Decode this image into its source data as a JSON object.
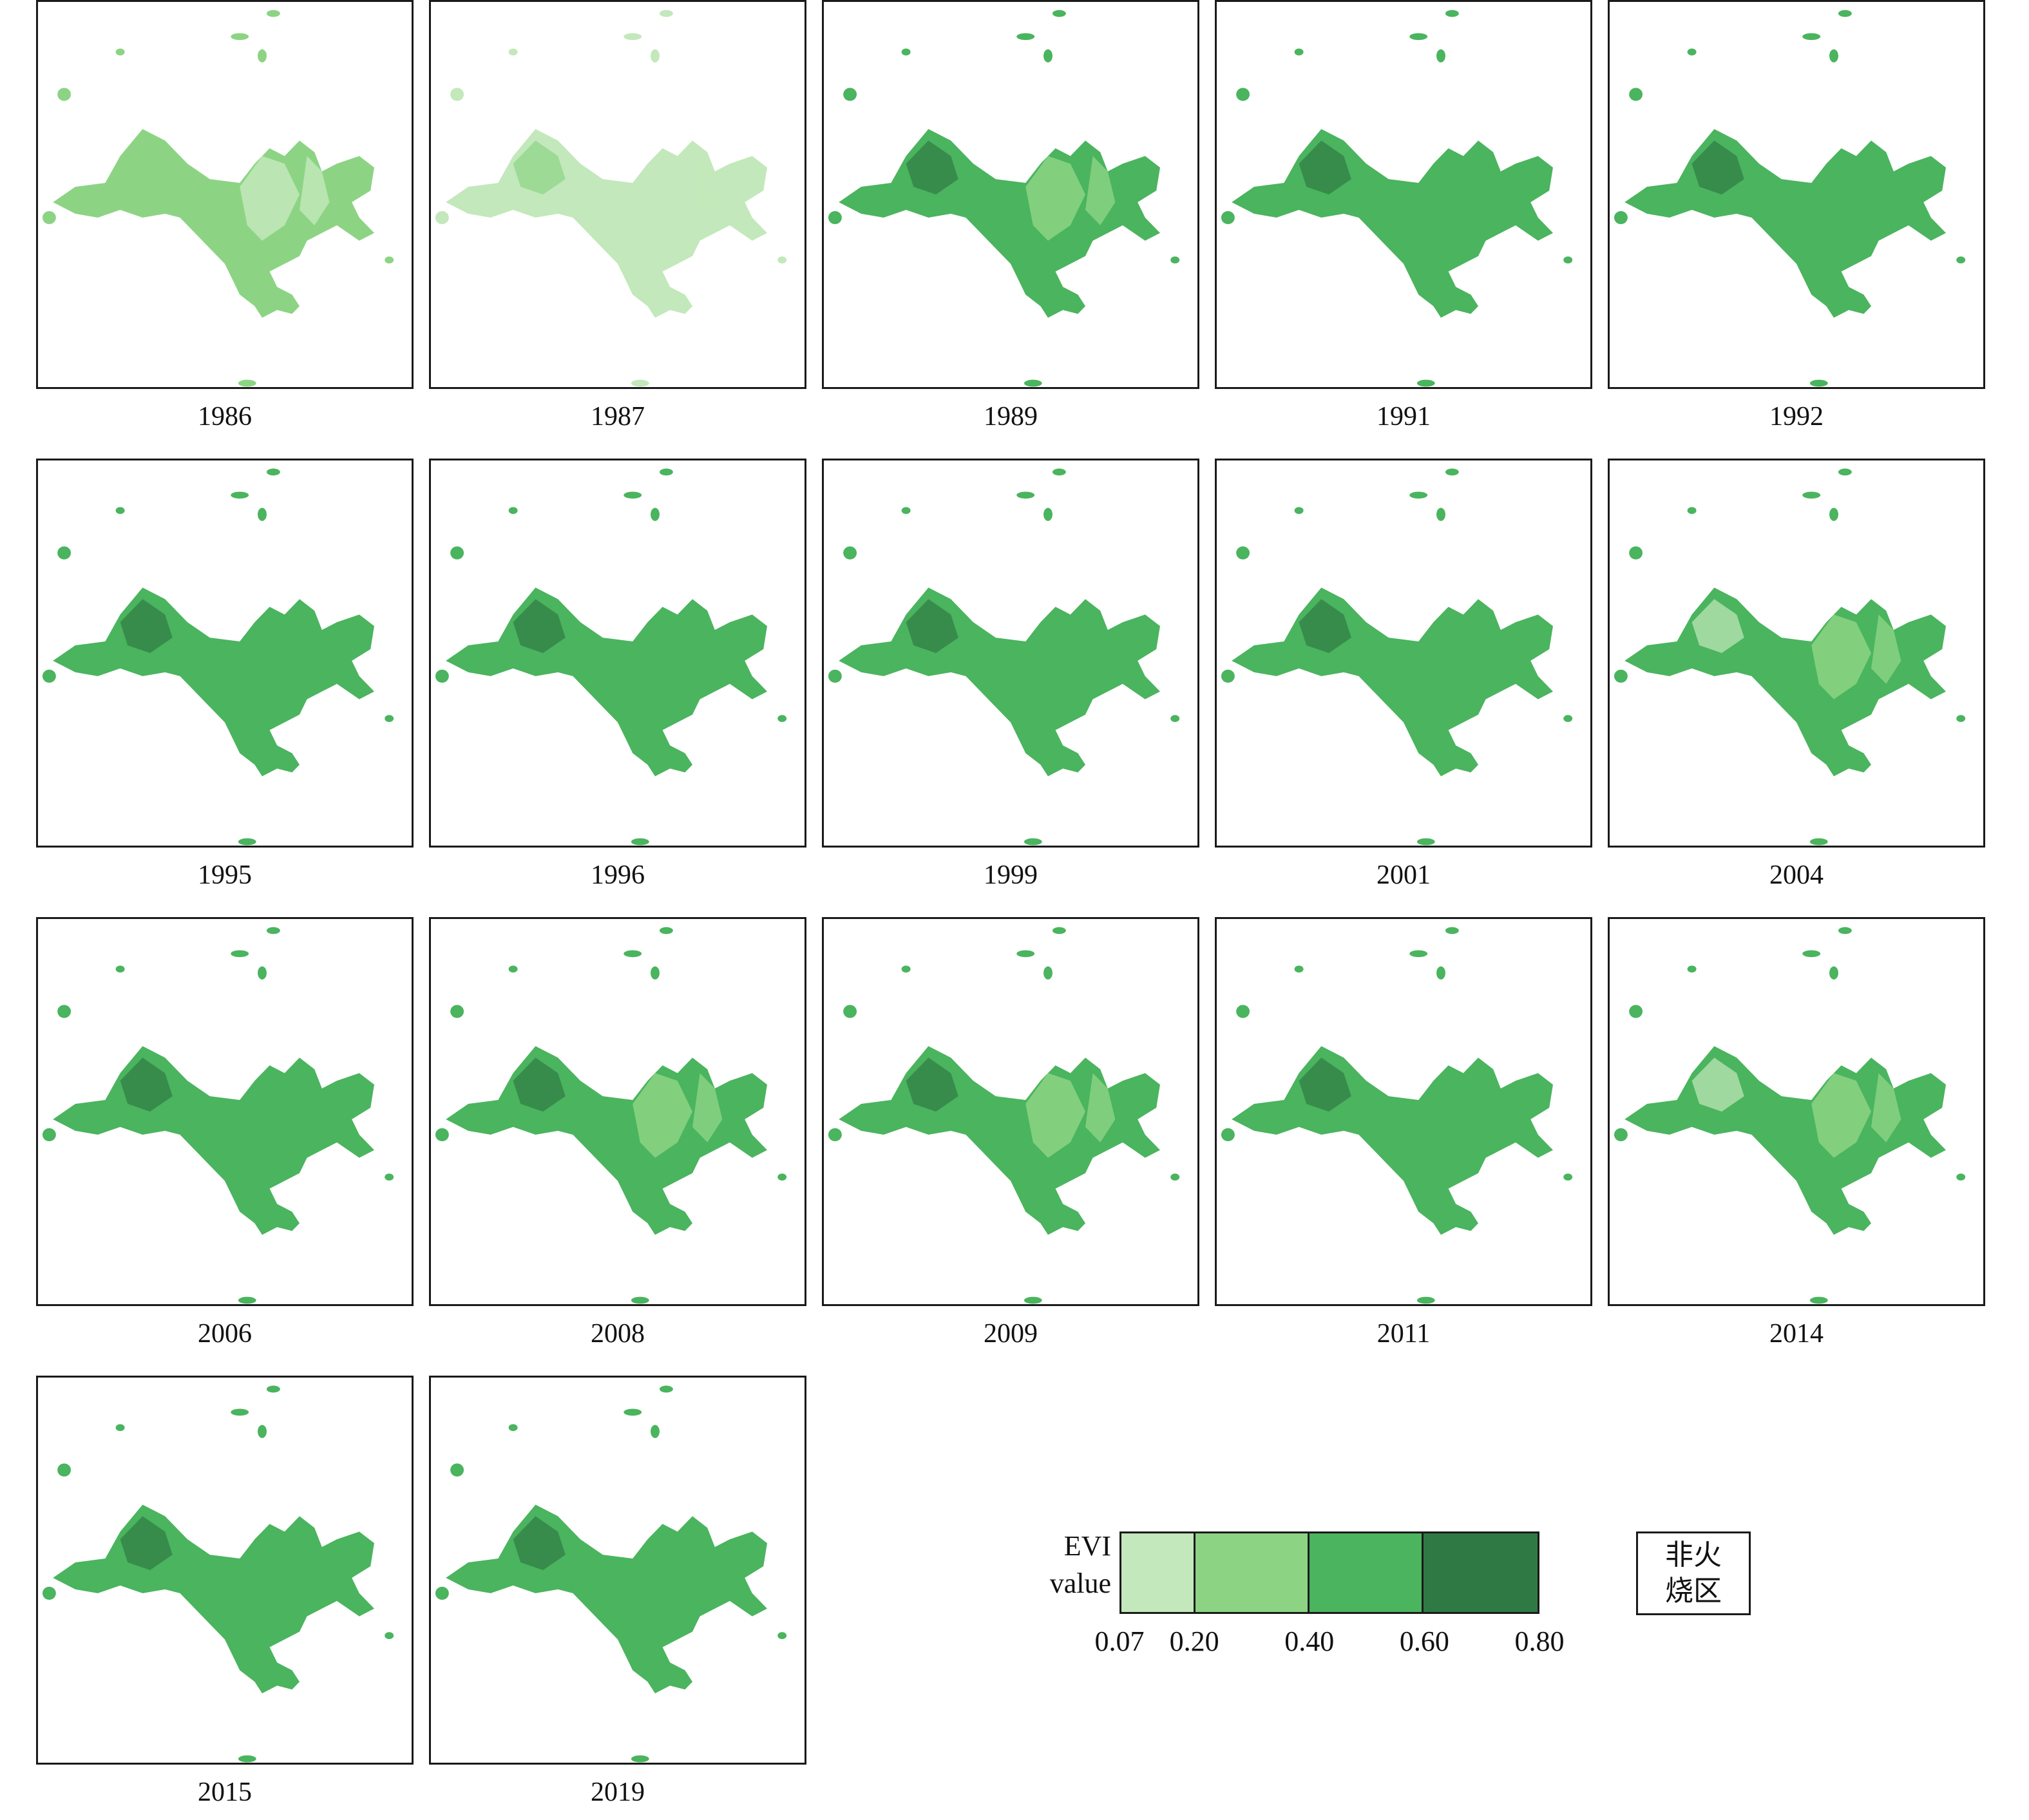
{
  "panels": [
    {
      "year": "1986",
      "shade": "light"
    },
    {
      "year": "1987",
      "shade": "vlight"
    },
    {
      "year": "1989",
      "shade": "mixed"
    },
    {
      "year": "1991",
      "shade": "dark"
    },
    {
      "year": "1992",
      "shade": "dark"
    },
    {
      "year": "1995",
      "shade": "dark"
    },
    {
      "year": "1996",
      "shade": "dark"
    },
    {
      "year": "1999",
      "shade": "dark"
    },
    {
      "year": "2001",
      "shade": "dark"
    },
    {
      "year": "2004",
      "shade": "mixedlight"
    },
    {
      "year": "2006",
      "shade": "dark"
    },
    {
      "year": "2008",
      "shade": "mixed"
    },
    {
      "year": "2009",
      "shade": "mixed"
    },
    {
      "year": "2011",
      "shade": "dark"
    },
    {
      "year": "2014",
      "shade": "mixedlight"
    },
    {
      "year": "2015",
      "shade": "dark"
    },
    {
      "year": "2019",
      "shade": "dark"
    }
  ],
  "legend": {
    "title_line1": "EVI",
    "title_line2": "value",
    "classes": [
      {
        "min": 0.07,
        "max": 0.2,
        "color": "#c3e8bb"
      },
      {
        "min": 0.2,
        "max": 0.4,
        "color": "#8cd484"
      },
      {
        "min": 0.4,
        "max": 0.6,
        "color": "#4ab45e"
      },
      {
        "min": 0.6,
        "max": 0.8,
        "color": "#2f7a44"
      }
    ],
    "tick_labels": [
      "0.07",
      "0.20",
      "0.40",
      "0.60",
      "0.80"
    ],
    "nonfire_line1": "非火",
    "nonfire_line2": "烧区"
  }
}
